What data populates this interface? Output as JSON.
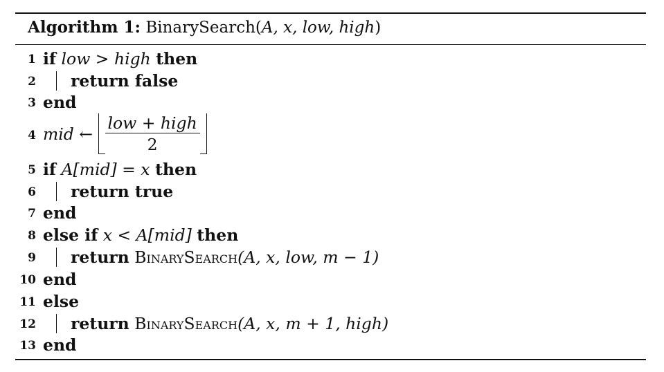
{
  "caption": {
    "label": "Algorithm 1:",
    "name": "BinarySearch(",
    "args": "A, x, low, high",
    "close": ")"
  },
  "lines": [
    {
      "no": "1",
      "kw1": "if",
      "cond": "low > high",
      "kw2": "then"
    },
    {
      "no": "2",
      "kw1": "return false"
    },
    {
      "no": "3",
      "kw1": "end"
    },
    {
      "no": "4",
      "lhs": "mid ←",
      "num": "low + high",
      "den": "2"
    },
    {
      "no": "5",
      "kw1": "if",
      "cond": "A[mid] = x",
      "kw2": "then"
    },
    {
      "no": "6",
      "kw1": "return true"
    },
    {
      "no": "7",
      "kw1": "end"
    },
    {
      "no": "8",
      "kw1": "else if",
      "cond": "x < A[mid]",
      "kw2": "then"
    },
    {
      "no": "9",
      "kw1": "return",
      "fn": "BinarySearch",
      "args": "(A, x, low, m − 1)"
    },
    {
      "no": "10",
      "kw1": "end"
    },
    {
      "no": "11",
      "kw1": "else"
    },
    {
      "no": "12",
      "kw1": "return",
      "fn": "BinarySearch",
      "args": "(A, x, m + 1, high)"
    },
    {
      "no": "13",
      "kw1": "end"
    }
  ]
}
